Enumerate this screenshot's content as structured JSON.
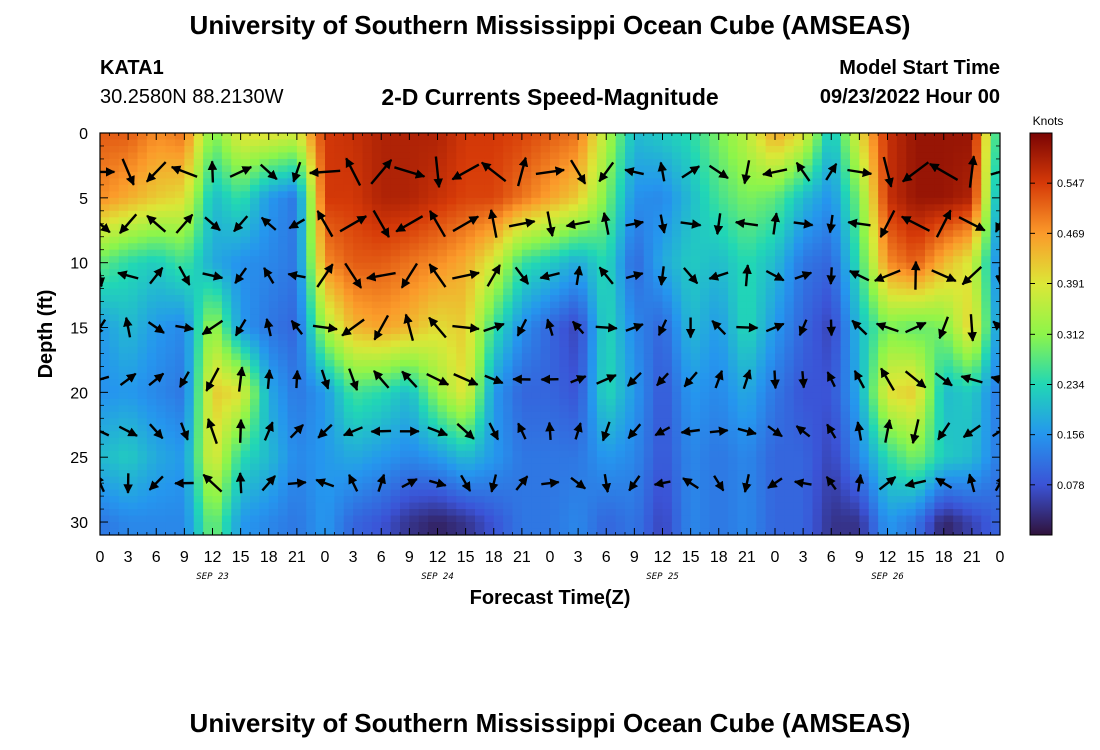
{
  "header": {
    "title": "University of Southern Mississippi Ocean Cube (AMSEAS)",
    "station": "KATA1",
    "coordinates": "30.2580N  88.2130W",
    "subtitle": "2-D Currents Speed-Magnitude",
    "model_start_label": "Model Start Time",
    "model_start_value": "09/23/2022 Hour 00"
  },
  "footer": {
    "title": "University of Southern Mississippi Ocean Cube (AMSEAS)"
  },
  "chart_data": {
    "type": "heatmap",
    "title": "2-D Currents Speed-Magnitude",
    "xlabel": "Forecast Time(Z)",
    "ylabel": "Depth (ft)",
    "x_range_hours": [
      0,
      96
    ],
    "x_tick_hours": [
      0,
      3,
      6,
      9,
      12,
      15,
      18,
      21,
      24,
      27,
      30,
      33,
      36,
      39,
      42,
      45,
      48,
      51,
      54,
      57,
      60,
      63,
      66,
      69,
      72,
      75,
      78,
      81,
      84,
      87,
      90,
      93,
      96
    ],
    "x_tick_labels": [
      "0",
      "3",
      "6",
      "9",
      "12",
      "15",
      "18",
      "21",
      "0",
      "3",
      "6",
      "9",
      "12",
      "15",
      "18",
      "21",
      "0",
      "3",
      "6",
      "9",
      "12",
      "15",
      "18",
      "21",
      "0",
      "3",
      "6",
      "9",
      "12",
      "15",
      "18",
      "21",
      "0"
    ],
    "day_labels": [
      {
        "hour": 12,
        "label": "SEP 23"
      },
      {
        "hour": 36,
        "label": "SEP 24"
      },
      {
        "hour": 60,
        "label": "SEP 25"
      },
      {
        "hour": 84,
        "label": "SEP 26"
      }
    ],
    "y_range_ft": [
      0,
      31
    ],
    "y_ticks": [
      0,
      5,
      10,
      15,
      20,
      25,
      30
    ],
    "y_tick_labels": [
      "0",
      "5",
      "10",
      "15",
      "20",
      "25",
      "30"
    ],
    "colorbar": {
      "unit": "Knots",
      "range": [
        0,
        0.625
      ],
      "ticks": [
        0.078,
        0.156,
        0.234,
        0.312,
        0.391,
        0.469,
        0.547
      ],
      "tick_labels": [
        "0.078",
        "0.156",
        "0.234",
        "0.312",
        "0.391",
        "0.469",
        "0.547"
      ]
    },
    "vector_depths_ft": [
      3,
      7,
      11,
      15,
      19,
      23,
      27
    ],
    "vector_hours": [
      0,
      3,
      6,
      9,
      12,
      15,
      18,
      21,
      24,
      27,
      30,
      33,
      36,
      39,
      42,
      45,
      48,
      51,
      54,
      57,
      60,
      63,
      66,
      69,
      72,
      75,
      78,
      81,
      84,
      87,
      90,
      93,
      96
    ],
    "speed_knots": {
      "hours": [
        0,
        3,
        6,
        9,
        12,
        15,
        18,
        21,
        24,
        27,
        30,
        33,
        36,
        39,
        42,
        45,
        48,
        51,
        54,
        57,
        60,
        63,
        66,
        69,
        72,
        75,
        78,
        81,
        84,
        87,
        90,
        93,
        96
      ],
      "depths_ft": [
        0,
        5,
        10,
        15,
        20,
        25,
        30
      ],
      "values": [
        [
          0.52,
          0.52,
          0.48,
          0.5,
          0.3,
          0.4,
          0.4,
          0.38,
          0.55,
          0.56,
          0.58,
          0.58,
          0.58,
          0.55,
          0.55,
          0.54,
          0.52,
          0.5,
          0.35,
          0.2,
          0.22,
          0.24,
          0.3,
          0.36,
          0.46,
          0.4,
          0.2,
          0.4,
          0.56,
          0.6,
          0.6,
          0.6,
          0.2
        ],
        [
          0.48,
          0.45,
          0.42,
          0.4,
          0.2,
          0.25,
          0.16,
          0.12,
          0.55,
          0.55,
          0.58,
          0.58,
          0.56,
          0.54,
          0.54,
          0.5,
          0.46,
          0.42,
          0.3,
          0.15,
          0.14,
          0.2,
          0.26,
          0.3,
          0.28,
          0.2,
          0.15,
          0.3,
          0.56,
          0.6,
          0.6,
          0.58,
          0.15
        ],
        [
          0.28,
          0.24,
          0.22,
          0.26,
          0.18,
          0.15,
          0.14,
          0.12,
          0.48,
          0.52,
          0.52,
          0.5,
          0.48,
          0.45,
          0.38,
          0.25,
          0.22,
          0.18,
          0.24,
          0.1,
          0.18,
          0.22,
          0.2,
          0.24,
          0.2,
          0.12,
          0.1,
          0.25,
          0.48,
          0.52,
          0.44,
          0.38,
          0.12
        ],
        [
          0.16,
          0.2,
          0.16,
          0.14,
          0.34,
          0.16,
          0.12,
          0.1,
          0.34,
          0.44,
          0.46,
          0.44,
          0.4,
          0.42,
          0.25,
          0.15,
          0.1,
          0.06,
          0.24,
          0.14,
          0.1,
          0.2,
          0.16,
          0.24,
          0.16,
          0.1,
          0.06,
          0.2,
          0.3,
          0.28,
          0.3,
          0.42,
          0.14
        ],
        [
          0.15,
          0.16,
          0.14,
          0.12,
          0.42,
          0.4,
          0.18,
          0.12,
          0.16,
          0.26,
          0.24,
          0.2,
          0.32,
          0.4,
          0.16,
          0.1,
          0.1,
          0.08,
          0.24,
          0.16,
          0.08,
          0.16,
          0.14,
          0.18,
          0.12,
          0.08,
          0.08,
          0.18,
          0.4,
          0.42,
          0.2,
          0.22,
          0.12
        ],
        [
          0.2,
          0.22,
          0.18,
          0.16,
          0.4,
          0.24,
          0.2,
          0.14,
          0.16,
          0.18,
          0.16,
          0.14,
          0.16,
          0.2,
          0.16,
          0.12,
          0.12,
          0.12,
          0.16,
          0.14,
          0.08,
          0.14,
          0.12,
          0.14,
          0.1,
          0.1,
          0.06,
          0.14,
          0.24,
          0.3,
          0.22,
          0.2,
          0.12
        ],
        [
          0.12,
          0.14,
          0.14,
          0.14,
          0.3,
          0.16,
          0.14,
          0.12,
          0.16,
          0.1,
          0.08,
          0.04,
          0.02,
          0.04,
          0.08,
          0.12,
          0.12,
          0.14,
          0.1,
          0.12,
          0.06,
          0.14,
          0.12,
          0.14,
          0.1,
          0.1,
          0.04,
          0.04,
          0.16,
          0.12,
          0.02,
          0.06,
          0.1
        ]
      ]
    }
  }
}
